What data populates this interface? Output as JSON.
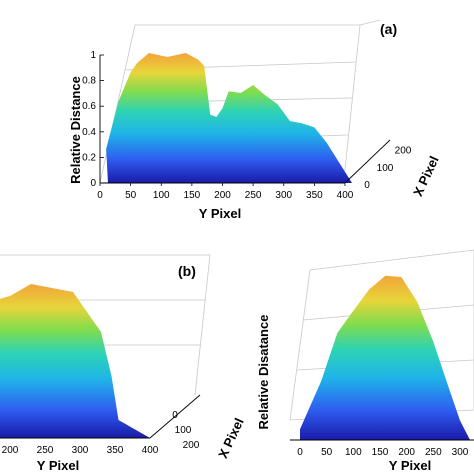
{
  "chart_data": [
    {
      "type": "surface3d",
      "panel_label": "(a)",
      "ylabel": "Y Pixel",
      "xlabel": "X Pixel",
      "zlabel": "Relative Distance",
      "y_ticks": [
        "0",
        "50",
        "100",
        "150",
        "200",
        "250",
        "300",
        "350",
        "400"
      ],
      "x_ticks": [
        "0",
        "100",
        "200"
      ],
      "z_ticks": [
        "0",
        "0.2",
        "0.4",
        "0.6",
        "0.8",
        "1"
      ],
      "ylim": [
        0,
        400
      ],
      "xlim": [
        0,
        250
      ],
      "zlim": [
        0,
        1
      ],
      "grid": true,
      "colormap": "jet",
      "profile_y": [
        10,
        30,
        50,
        60,
        80,
        110,
        140,
        160,
        170,
        180,
        190,
        200,
        210,
        230,
        250,
        270,
        290,
        310,
        330,
        350,
        370
      ],
      "profile_z": [
        0.25,
        0.65,
        0.85,
        0.95,
        1.0,
        1.0,
        1.0,
        0.98,
        0.9,
        0.55,
        0.5,
        0.6,
        0.7,
        0.72,
        0.75,
        0.7,
        0.6,
        0.5,
        0.45,
        0.45,
        0.3
      ]
    },
    {
      "type": "surface3d",
      "panel_label": "(b)",
      "ylabel": "Y Pixel",
      "xlabel": "X Pixel",
      "y_ticks": [
        "200",
        "250",
        "300",
        "350",
        "400"
      ],
      "x_ticks": [
        "0",
        "100",
        "200"
      ],
      "grid": true,
      "colormap": "jet",
      "profile_y": [
        180,
        200,
        230,
        260,
        290,
        310,
        330,
        345,
        355
      ],
      "profile_z": [
        0.85,
        0.9,
        0.95,
        0.95,
        0.9,
        0.8,
        0.65,
        0.4,
        0.1
      ]
    },
    {
      "type": "surface3d",
      "panel_label": "",
      "ylabel": "Y Pixel",
      "zlabel": "Relative Disatance",
      "y_ticks": [
        "0",
        "50",
        "100",
        "150",
        "200",
        "250",
        "300"
      ],
      "grid": true,
      "colormap": "jet",
      "profile_y": [
        0,
        40,
        70,
        100,
        130,
        160,
        190,
        220,
        250,
        280,
        300
      ],
      "profile_z": [
        0.05,
        0.35,
        0.6,
        0.75,
        0.85,
        0.95,
        0.92,
        0.8,
        0.55,
        0.3,
        0.1
      ]
    }
  ]
}
